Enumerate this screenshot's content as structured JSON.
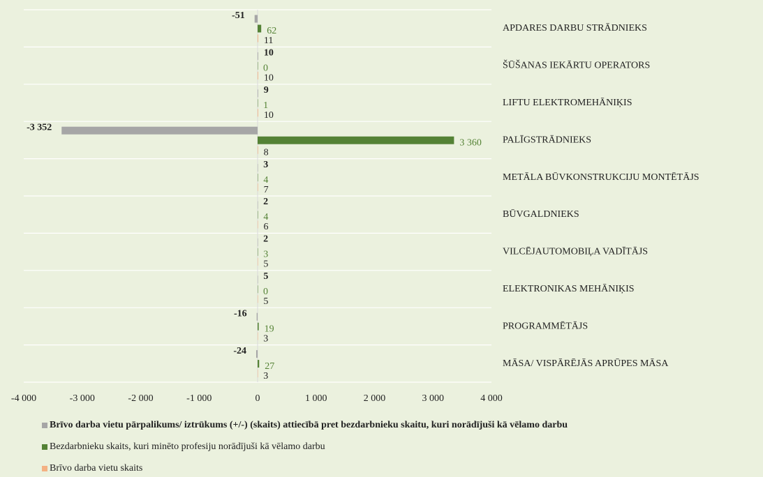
{
  "chart_data": {
    "type": "hbar",
    "categories": [
      "APDARES DARBU STRĀDNIEKS",
      "ŠŪŠANAS IEKĀRTU OPERATORS",
      "LIFTU ELEKTROMEHĀNIĶIS",
      "PALĪGSTRĀDNIEKS",
      "METĀLA BŪVKONSTRUKCIJU MONTĒTĀJS",
      "BŪVGALDNIEKS",
      "VILCĒJAUTOMOBIĻA VADĪTĀJS",
      "ELEKTRONIKAS MEHĀNIĶIS",
      "PROGRAMMĒTĀJS",
      "MĀSA/ VISPĀRĒJĀS APRŪPES MĀSA"
    ],
    "series": [
      {
        "name": "Brīvo darba vietu pārpalikums/ iztrūkums (+/-) (skaits) attiecībā pret bezdarbnieku skaitu, kuri norādījuši kā vēlamo darbu",
        "color": "#a6a6a6",
        "values": [
          -51,
          10,
          9,
          -3352,
          3,
          2,
          2,
          5,
          -16,
          -24
        ],
        "value_labels": [
          "-51",
          "10",
          "9",
          "-3 352",
          "3",
          "2",
          "2",
          "5",
          "-16",
          "-24"
        ]
      },
      {
        "name": "Bezdarbnieku skaits, kuri minēto profesiju norādījuši kā vēlamo darbu",
        "color": "#548235",
        "values": [
          62,
          0,
          1,
          3360,
          4,
          4,
          3,
          0,
          19,
          27
        ],
        "value_labels": [
          "62",
          "0",
          "1",
          "3 360",
          "4",
          "4",
          "3",
          "0",
          "19",
          "27"
        ]
      },
      {
        "name": "Brīvo darba vietu skaits",
        "color": "#f4b183",
        "values": [
          11,
          10,
          10,
          8,
          7,
          6,
          5,
          5,
          3,
          3
        ]
      }
    ],
    "xlim": [
      -4000,
      4000
    ],
    "xticks": [
      {
        "value": -4000,
        "label": "-4 000"
      },
      {
        "value": -3000,
        "label": "-3 000"
      },
      {
        "value": -2000,
        "label": "-2 000"
      },
      {
        "value": -1000,
        "label": "-1 000"
      },
      0,
      {
        "value": 1000,
        "label": "1 000"
      },
      {
        "value": 2000,
        "label": "2 000"
      },
      {
        "value": 3000,
        "label": "3 000"
      },
      {
        "value": 4000,
        "label": "4 000"
      }
    ],
    "grid": true,
    "legend": "bottom"
  }
}
